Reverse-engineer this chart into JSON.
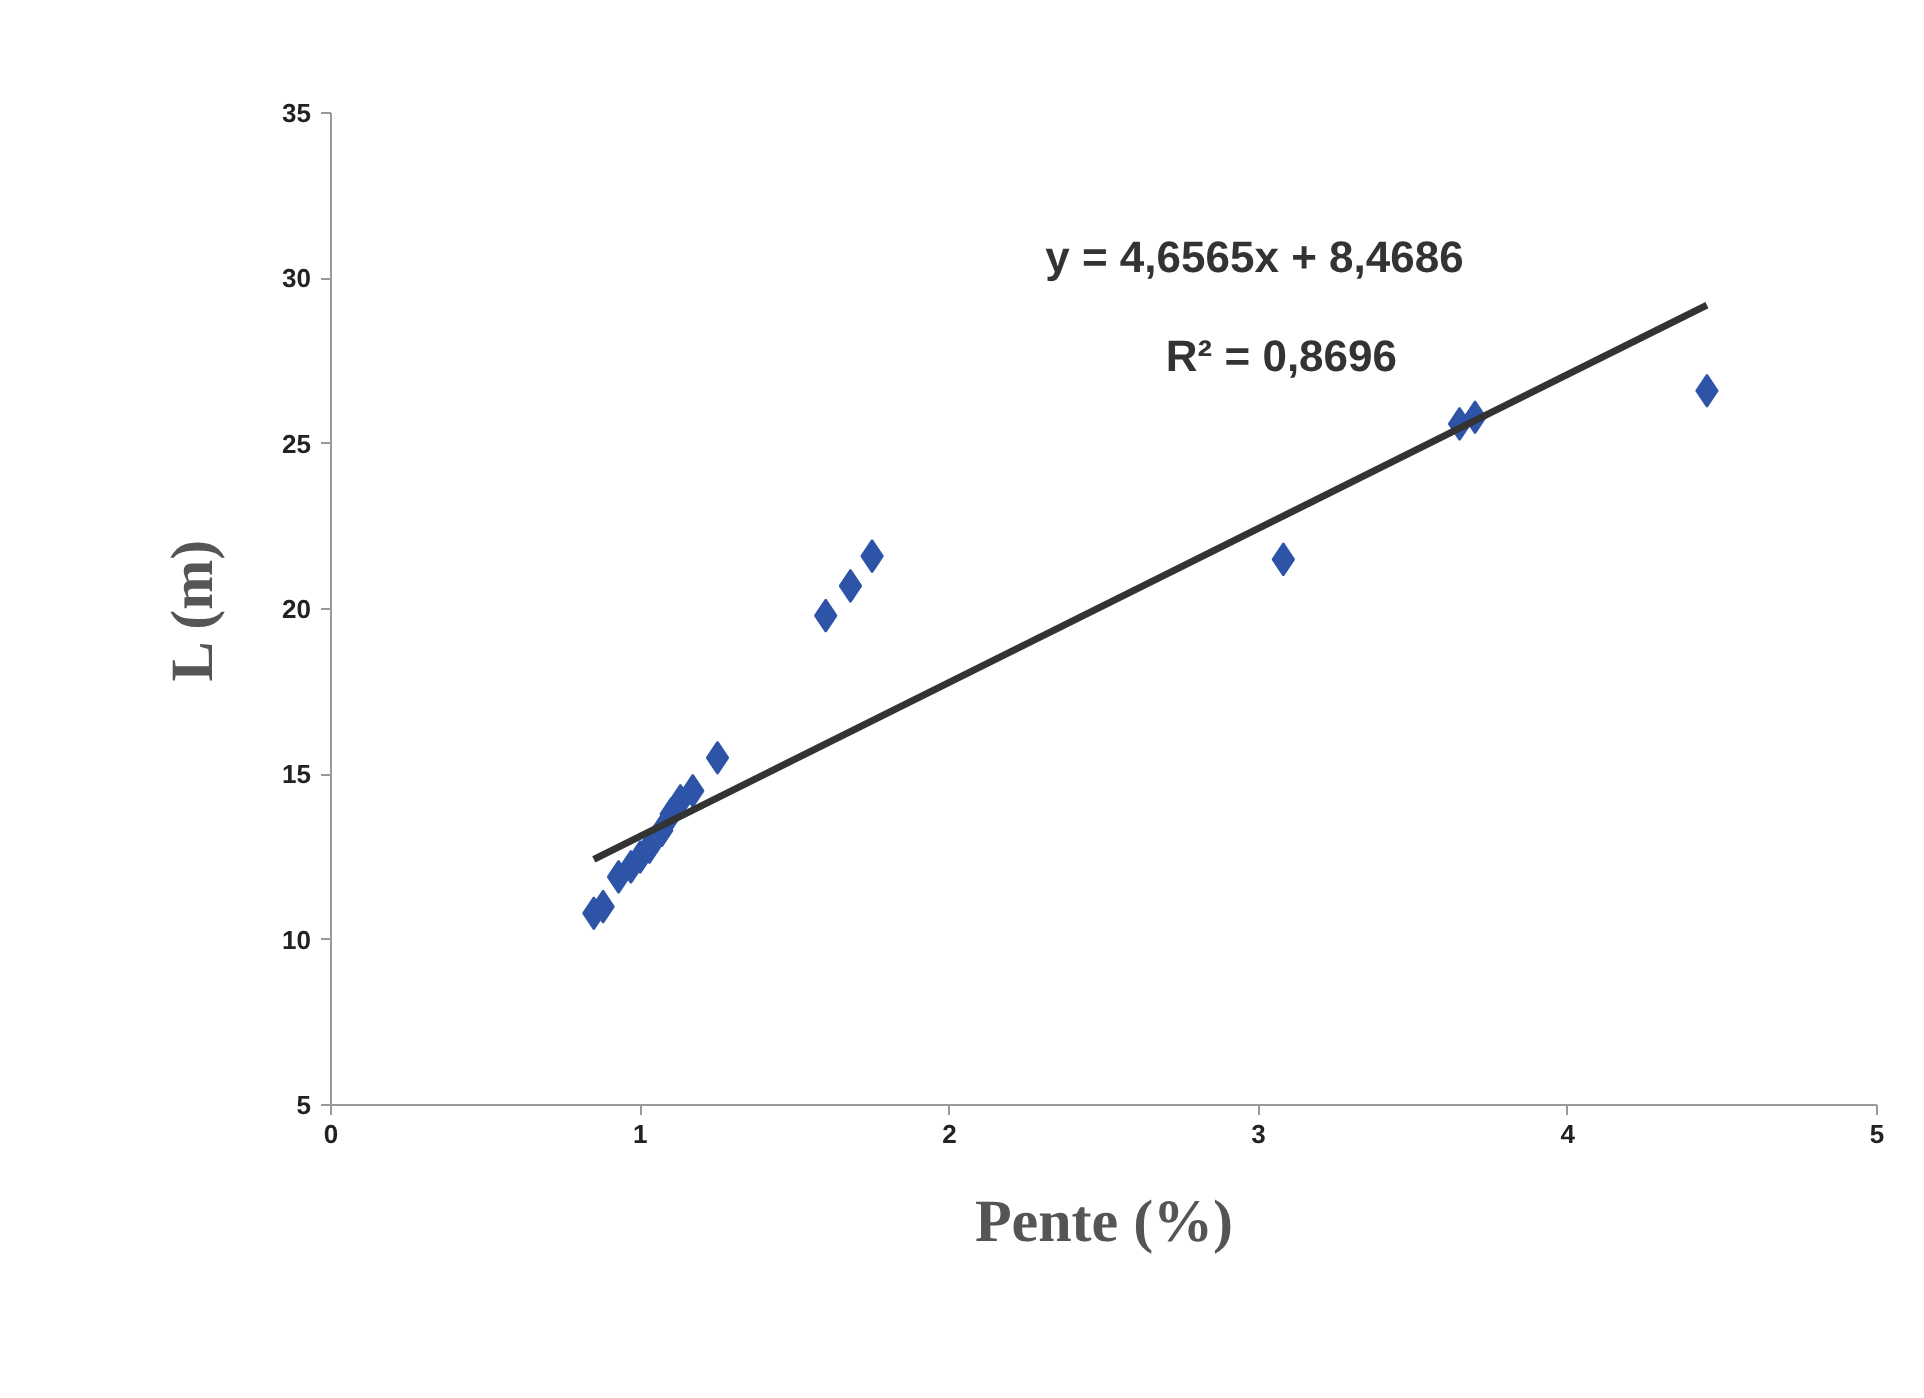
{
  "chart_data": {
    "type": "scatter",
    "xlabel": "Pente (%)",
    "ylabel": "L (m)",
    "xlim": [
      0,
      5
    ],
    "xticks": [
      0,
      1,
      2,
      3,
      4,
      5
    ],
    "ylim": [
      5,
      35
    ],
    "yticks": [
      5,
      10,
      15,
      20,
      25,
      30,
      35
    ],
    "grid": false,
    "marker": "diamond",
    "series": [
      {
        "color": "#2e54a8",
        "x": [
          0.85,
          0.88,
          0.93,
          0.97,
          1.0,
          1.03,
          1.07,
          1.1,
          1.13,
          1.17,
          1.25,
          1.6,
          1.68,
          1.75,
          3.08,
          3.65,
          3.7,
          4.45
        ],
        "values": [
          10.8,
          11.0,
          11.9,
          12.2,
          12.5,
          12.8,
          13.3,
          13.8,
          14.2,
          14.5,
          15.5,
          19.8,
          20.7,
          21.6,
          21.5,
          25.6,
          25.8,
          26.6
        ]
      },
      {
        "type": "line",
        "marker": "none",
        "color": "#333333",
        "x": [
          0.85,
          4.45
        ],
        "values": [
          12.43,
          29.19
        ]
      }
    ],
    "annotations": [
      "y = 4,6565x + 8,4686",
      "R² = 0,8696"
    ]
  }
}
